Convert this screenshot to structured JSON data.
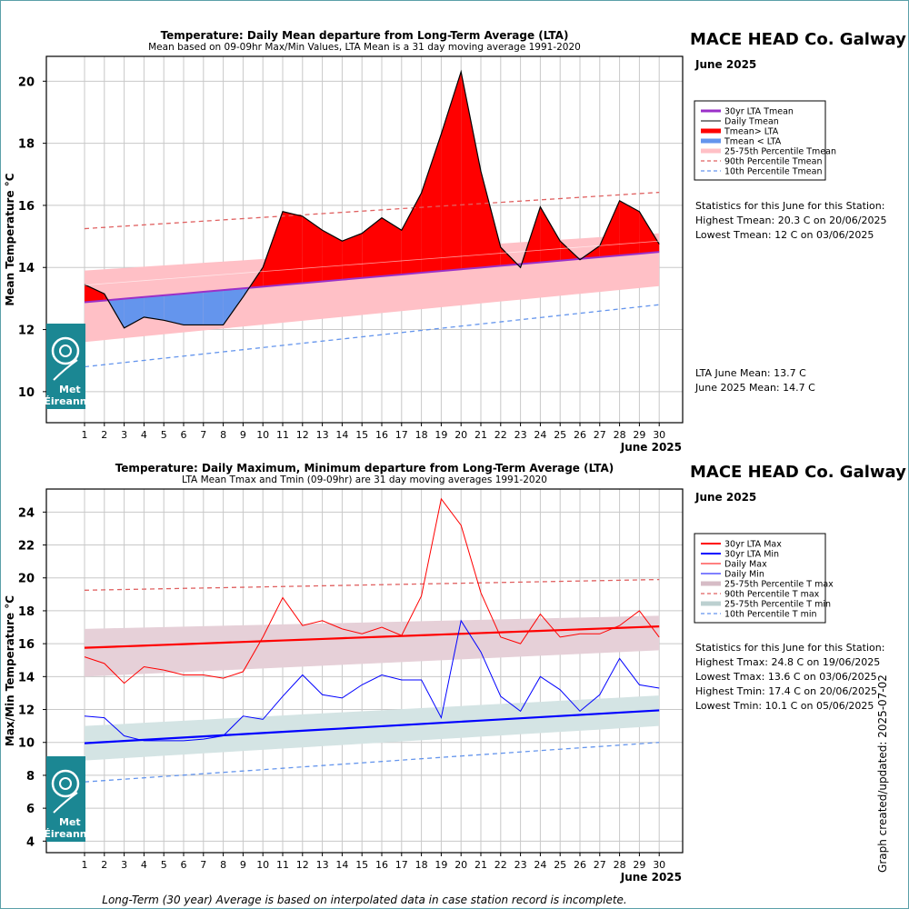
{
  "footnote": "Long-Term (30 year) Average is based on interpolated data in case station record is incomplete.",
  "updated": "Graph created/updated:  2025-07-02",
  "logo": {
    "line1": "Met",
    "line2": "Éireann"
  },
  "chart_data": [
    {
      "type": "line",
      "title": "Temperature: Daily Mean departure from Long-Term Average (LTA)",
      "subtitle": "Mean based on 09-09hr Max/Min Values, LTA Mean is a 31 day moving average 1991-2020",
      "station": "MACE HEAD Co. Galway",
      "month": "June 2025",
      "xlabel": "June 2025",
      "ylabel": "Mean Temperature °C",
      "x": [
        1,
        2,
        3,
        4,
        5,
        6,
        7,
        8,
        9,
        10,
        11,
        12,
        13,
        14,
        15,
        16,
        17,
        18,
        19,
        20,
        21,
        22,
        23,
        24,
        25,
        26,
        27,
        28,
        29,
        30
      ],
      "ylim": [
        9,
        20.8
      ],
      "yticks": [
        10,
        12,
        14,
        16,
        18,
        20
      ],
      "grid": true,
      "legend_position": "right",
      "legend": [
        "30yr LTA Tmean",
        "Daily Tmean",
        "Tmean> LTA",
        "Tmean < LTA",
        "25-75th Percentile Tmean",
        "90th Percentile Tmean",
        "10th Percentile Tmean"
      ],
      "colors": {
        "lta": "#9b30c8",
        "daily": "#000000",
        "above": "#ff0000",
        "below": "#6495ed",
        "band": "#ffc0c6",
        "p90": "#e06060",
        "p10": "#6495ed"
      },
      "series": {
        "daily": [
          13.45,
          13.15,
          12.05,
          12.4,
          12.3,
          12.15,
          12.15,
          12.15,
          13.05,
          14.0,
          15.8,
          15.65,
          15.2,
          14.85,
          15.1,
          15.6,
          15.2,
          16.4,
          18.3,
          20.3,
          17.1,
          14.65,
          14.0,
          15.95,
          14.85,
          14.25,
          14.7,
          16.15,
          15.8,
          14.75
        ],
        "lta_start": 12.88,
        "lta_end": 14.5,
        "p25_start": 11.6,
        "p25_end": 13.4,
        "p75_start": 13.9,
        "p75_end": 15.1,
        "p90_start": 15.25,
        "p90_end": 16.42,
        "p10_start": 10.8,
        "p10_end": 12.8
      },
      "stats": {
        "heading": "Statistics for this June for this Station:",
        "lines": [
          "Highest Tmean: 20.3 C on 20/06/2025",
          "Lowest Tmean: 12 C on 03/06/2025"
        ],
        "means": [
          "LTA June Mean: 13.7 C",
          "June 2025 Mean: 14.7 C"
        ]
      }
    },
    {
      "type": "line",
      "title": "Temperature: Daily Maximum, Minimum departure from Long-Term Average (LTA)",
      "subtitle": "LTA Mean Tmax and Tmin (09-09hr) are 31 day moving averages 1991-2020",
      "station": "MACE HEAD Co. Galway",
      "month": "June 2025",
      "xlabel": "June 2025",
      "ylabel": "Max/Min Temperature °C",
      "x": [
        1,
        2,
        3,
        4,
        5,
        6,
        7,
        8,
        9,
        10,
        11,
        12,
        13,
        14,
        15,
        16,
        17,
        18,
        19,
        20,
        21,
        22,
        23,
        24,
        25,
        26,
        27,
        28,
        29,
        30
      ],
      "ylim": [
        3.3,
        25.4
      ],
      "yticks": [
        4,
        6,
        8,
        10,
        12,
        14,
        16,
        18,
        20,
        22,
        24
      ],
      "grid": true,
      "legend_position": "right",
      "legend": [
        "30yr LTA Max",
        "30yr LTA Min",
        "Daily Max",
        "Daily Min",
        "25-75th Percentile T max",
        "90th Percentile T max",
        "25-75th Percentile T min",
        "10th Percentile T min"
      ],
      "colors": {
        "ltamax": "#ff0000",
        "ltamin": "#0000ff",
        "dmax": "#ff0000",
        "dmin": "#0000ff",
        "bandmax": "#e6d0d8",
        "bandmin": "#d4e4e4",
        "p90": "#e06060",
        "p10": "#6495ed"
      },
      "series": {
        "daily_max": [
          15.2,
          14.8,
          13.6,
          14.6,
          14.4,
          14.1,
          14.1,
          13.9,
          14.3,
          16.4,
          18.8,
          17.1,
          17.4,
          16.9,
          16.6,
          17.0,
          16.5,
          18.9,
          24.8,
          23.2,
          19.1,
          16.4,
          16.0,
          17.8,
          16.4,
          16.6,
          16.6,
          17.1,
          18.0,
          16.4
        ],
        "daily_min": [
          11.6,
          11.5,
          10.4,
          10.1,
          10.1,
          10.1,
          10.2,
          10.4,
          11.6,
          11.4,
          12.8,
          14.1,
          12.9,
          12.7,
          13.5,
          14.1,
          13.8,
          13.8,
          11.5,
          17.4,
          15.5,
          12.8,
          11.9,
          14.0,
          13.2,
          11.9,
          12.9,
          15.1,
          13.5,
          13.3
        ],
        "ltamax_start": 15.75,
        "ltamax_end": 17.05,
        "ltamin_start": 9.95,
        "ltamin_end": 11.95,
        "bandmax_lo_start": 14.0,
        "bandmax_lo_end": 15.6,
        "bandmax_hi_start": 16.9,
        "bandmax_hi_end": 17.7,
        "bandmin_lo_start": 8.9,
        "bandmin_lo_end": 11.0,
        "bandmin_hi_start": 11.0,
        "bandmin_hi_end": 12.85,
        "p90_start": 19.25,
        "p90_end": 19.9,
        "p10_start": 7.6,
        "p10_end": 10.0
      },
      "stats": {
        "heading": "Statistics for this June for this Station:",
        "lines": [
          "Highest Tmax: 24.8 C on 19/06/2025",
          "Lowest Tmax: 13.6 C on 03/06/2025",
          "Highest Tmin: 17.4 C on 20/06/2025",
          "Lowest Tmin: 10.1 C on 05/06/2025"
        ]
      }
    }
  ]
}
